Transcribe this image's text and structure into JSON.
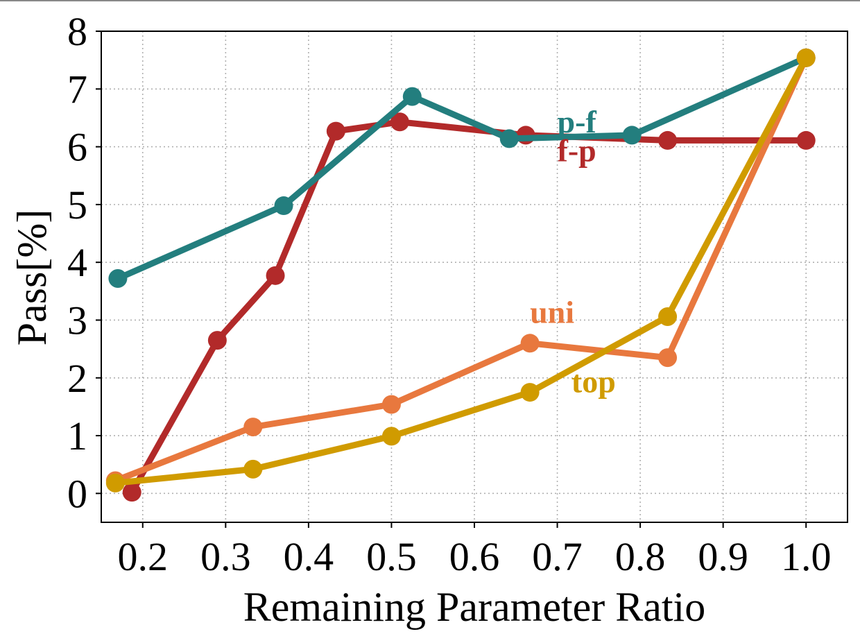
{
  "chart_data": {
    "type": "line",
    "xlabel": "Remaining Parameter Ratio",
    "ylabel": "Pass[%]",
    "xlim": [
      0.15,
      1.05
    ],
    "ylim": [
      -0.5,
      8
    ],
    "x_ticks": [
      0.2,
      0.3,
      0.4,
      0.5,
      0.6,
      0.7,
      0.8,
      0.9,
      1.0
    ],
    "x_tick_labels": [
      "0.2",
      "0.3",
      "0.4",
      "0.5",
      "0.6",
      "0.7",
      "0.8",
      "0.9",
      "1.0"
    ],
    "y_ticks": [
      0,
      1,
      2,
      3,
      4,
      5,
      6,
      7,
      8
    ],
    "y_tick_labels": [
      "0",
      "1",
      "2",
      "3",
      "4",
      "5",
      "6",
      "7",
      "8"
    ],
    "grid": true,
    "legend": "none",
    "series": [
      {
        "name": "f-p",
        "color": "#b22a2a",
        "x": [
          0.187,
          0.29,
          0.36,
          0.433,
          0.51,
          0.662,
          0.833,
          1.0
        ],
        "y": [
          0.02,
          2.65,
          3.77,
          6.27,
          6.43,
          6.2,
          6.11,
          6.11
        ]
      },
      {
        "name": "p-f",
        "color": "#237e7e",
        "x": [
          0.17,
          0.37,
          0.525,
          0.642,
          0.79,
          1.0
        ],
        "y": [
          3.72,
          4.98,
          6.87,
          6.14,
          6.2,
          7.54
        ]
      },
      {
        "name": "uni",
        "color": "#e8783e",
        "x": [
          0.167,
          0.333,
          0.5,
          0.667,
          0.833,
          1.0
        ],
        "y": [
          0.22,
          1.15,
          1.54,
          2.6,
          2.35,
          7.54
        ]
      },
      {
        "name": "top",
        "color": "#d09b00",
        "x": [
          0.167,
          0.333,
          0.5,
          0.667,
          0.833,
          1.0
        ],
        "y": [
          0.18,
          0.42,
          0.99,
          1.75,
          3.06,
          7.54
        ]
      }
    ],
    "annotations": [
      {
        "text": "p-f",
        "series": "p-f",
        "x": 0.7,
        "y": 6.25
      },
      {
        "text": "f-p",
        "series": "f-p",
        "x": 0.7,
        "y": 5.75
      },
      {
        "text": "uni",
        "series": "uni",
        "x": 0.667,
        "y": 2.95
      },
      {
        "text": "top",
        "series": "top",
        "x": 0.717,
        "y": 1.75
      }
    ]
  }
}
